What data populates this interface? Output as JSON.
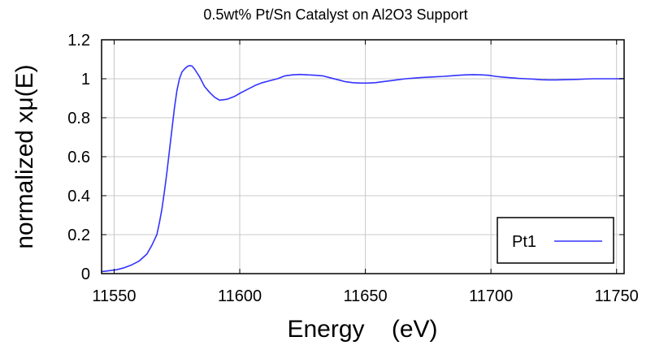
{
  "chart_data": {
    "type": "line",
    "title": "0.5wt% Pt/Sn Catalyst on Al2O3 Support",
    "xlabel": "Energy    (eV)",
    "ylabel": "normalized xμ(E)",
    "xlim": [
      11545,
      11753
    ],
    "ylim": [
      0,
      1.2
    ],
    "xticks": [
      11550,
      11600,
      11650,
      11700,
      11750
    ],
    "yticks": [
      0,
      0.2,
      0.4,
      0.6,
      0.8,
      1,
      1.2
    ],
    "grid": true,
    "legend_position": "bottom-right",
    "series": [
      {
        "name": "Pt1",
        "color": "#3333ff",
        "x": [
          11545,
          11548,
          11551,
          11554,
          11557,
          11560,
          11563,
          11565,
          11567,
          11568,
          11569,
          11570,
          11571,
          11572,
          11573,
          11574,
          11575,
          11576,
          11577,
          11578,
          11579,
          11580,
          11581,
          11582,
          11584,
          11586,
          11588,
          11590,
          11592,
          11595,
          11598,
          11600,
          11603,
          11606,
          11609,
          11612,
          11615,
          11618,
          11621,
          11624,
          11627,
          11630,
          11633,
          11636,
          11639,
          11642,
          11645,
          11648,
          11651,
          11654,
          11657,
          11660,
          11663,
          11666,
          11669,
          11672,
          11675,
          11678,
          11681,
          11684,
          11687,
          11690,
          11693,
          11696,
          11699,
          11702,
          11705,
          11708,
          11711,
          11714,
          11717,
          11720,
          11723,
          11726,
          11729,
          11732,
          11735,
          11738,
          11741,
          11744,
          11747,
          11750,
          11753
        ],
        "y": [
          0.01,
          0.015,
          0.02,
          0.03,
          0.045,
          0.065,
          0.1,
          0.145,
          0.2,
          0.26,
          0.33,
          0.42,
          0.52,
          0.63,
          0.74,
          0.85,
          0.94,
          1.0,
          1.035,
          1.05,
          1.062,
          1.068,
          1.065,
          1.05,
          1.01,
          0.96,
          0.93,
          0.905,
          0.89,
          0.895,
          0.91,
          0.925,
          0.945,
          0.965,
          0.98,
          0.99,
          1.0,
          1.015,
          1.02,
          1.022,
          1.02,
          1.018,
          1.015,
          1.005,
          0.995,
          0.985,
          0.98,
          0.978,
          0.978,
          0.98,
          0.985,
          0.99,
          0.995,
          1.0,
          1.003,
          1.006,
          1.008,
          1.01,
          1.012,
          1.015,
          1.018,
          1.02,
          1.021,
          1.02,
          1.018,
          1.012,
          1.008,
          1.005,
          1.002,
          1.0,
          0.998,
          0.995,
          0.994,
          0.994,
          0.995,
          0.996,
          0.997,
          0.999,
          1.0,
          1.0,
          1.0,
          1.0,
          1.001
        ]
      }
    ]
  }
}
